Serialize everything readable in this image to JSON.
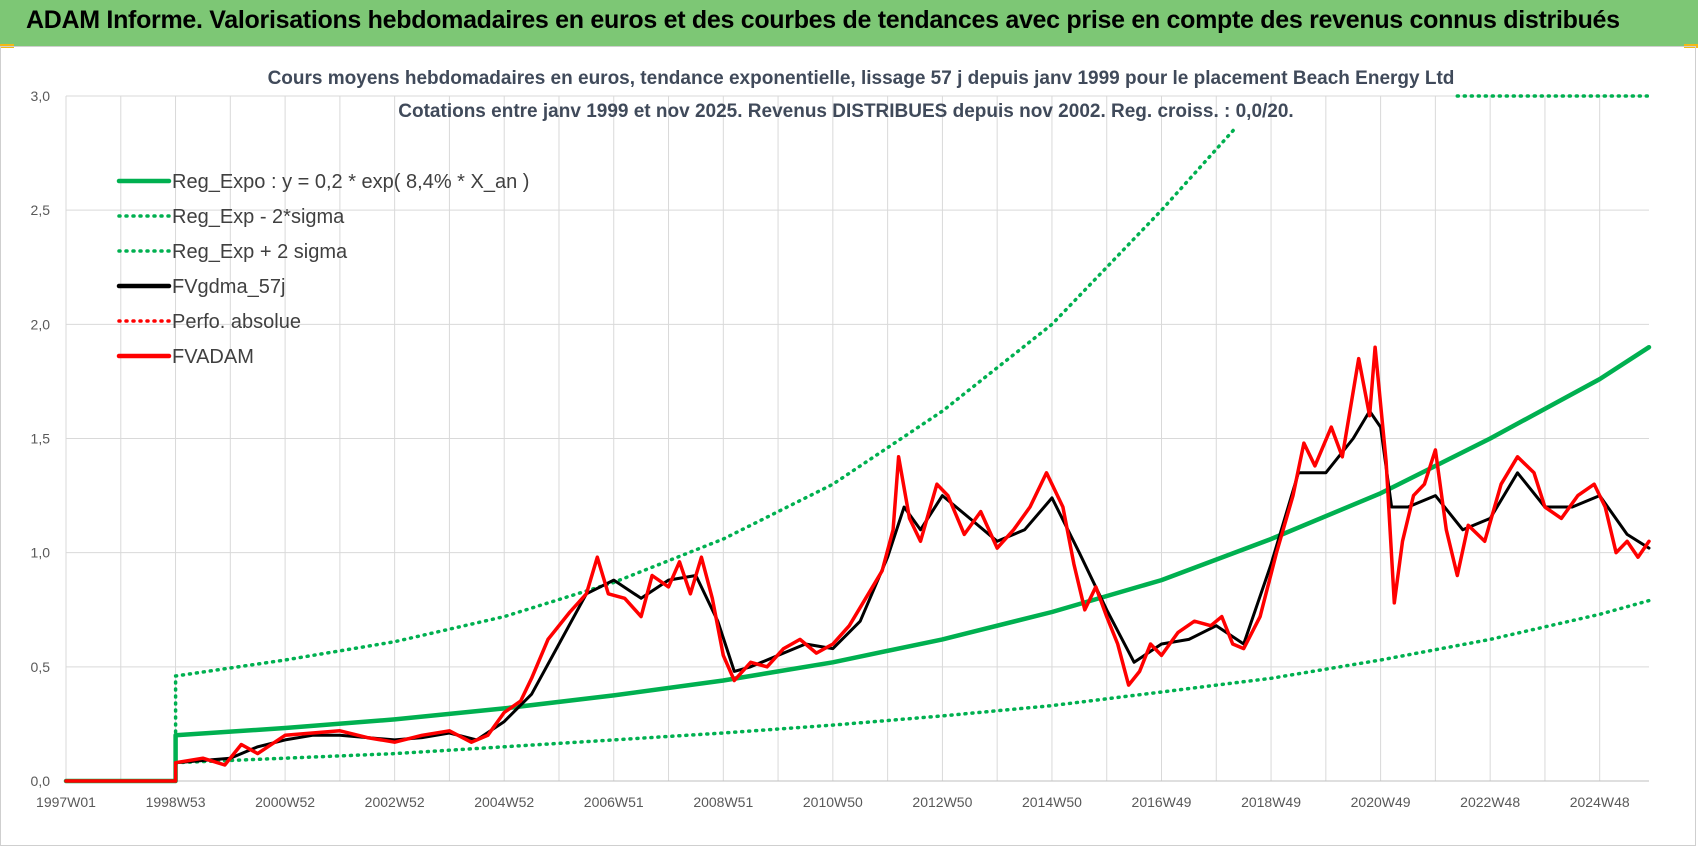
{
  "banner": {
    "title": "ADAM Informe. Valorisations hebdomadaires en euros et des courbes de tendances avec prise en compte des revenus connus distribués"
  },
  "colors": {
    "banner_bg": "#7dc775",
    "trend_green": "#00b050",
    "smooth_black": "#000000",
    "price_red": "#ff0000",
    "grid": "#d9d9d9",
    "title_text": "#404a5a"
  },
  "chart_data": {
    "type": "line",
    "title": "Cours moyens hebdomadaires en euros, tendance exponentielle, lissage 57 j depuis janv 1999  pour le placement Beach Energy Ltd",
    "subtitle": "Cotations entre janv 1999 et nov 2025. Revenus DISTRIBUES depuis nov 2002.  Reg. croiss. : 0,0/20.",
    "xlabel": "",
    "ylabel": "",
    "ylim": [
      0,
      3.0
    ],
    "xlim": [
      1997.0,
      2025.9
    ],
    "y_ticks": [
      "0,0",
      "0,5",
      "1,0",
      "1,5",
      "2,0",
      "2,5",
      "3,0"
    ],
    "x_tick_labels": [
      "1997W01",
      "1998W53",
      "2000W52",
      "2002W52",
      "2004W52",
      "2006W51",
      "2008W51",
      "2010W50",
      "2012W50",
      "2014W50",
      "2016W49",
      "2018W49",
      "2020W49",
      "2022W48",
      "2024W48"
    ],
    "x_tick_years": [
      1997.0,
      1999.0,
      2001.0,
      2003.0,
      2005.0,
      2007.0,
      2009.0,
      2011.0,
      2013.0,
      2015.0,
      2017.0,
      2019.0,
      2021.0,
      2023.0,
      2025.0
    ],
    "grid": true,
    "legend_position": "top-left",
    "legend": [
      {
        "label": "Reg_Expo : y = 0,2 * exp( 8,4% *  X_an )",
        "color": "#00b050",
        "style": "solid"
      },
      {
        "label": "Reg_Exp - 2*sigma",
        "color": "#00b050",
        "style": "dotted"
      },
      {
        "label": "Reg_Exp + 2 sigma",
        "color": "#00b050",
        "style": "dotted"
      },
      {
        "label": "FVgdma_57j",
        "color": "#000000",
        "style": "solid"
      },
      {
        "label": "Perfo. absolue",
        "color": "#ff0000",
        "style": "dotted"
      },
      {
        "label": "FVADAM",
        "color": "#ff0000",
        "style": "solid"
      }
    ],
    "series": [
      {
        "name": "Reg_Expo : y = 0,2 * exp( 8,4% *  X_an )",
        "points": [
          [
            1997.0,
            0
          ],
          [
            1999.0,
            0
          ],
          [
            1999.0,
            0.2
          ],
          [
            2001.0,
            0.232
          ],
          [
            2003.0,
            0.27
          ],
          [
            2005.0,
            0.318
          ],
          [
            2007.0,
            0.375
          ],
          [
            2009.0,
            0.44
          ],
          [
            2011.0,
            0.52
          ],
          [
            2013.0,
            0.62
          ],
          [
            2015.0,
            0.74
          ],
          [
            2017.0,
            0.88
          ],
          [
            2019.0,
            1.06
          ],
          [
            2021.0,
            1.26
          ],
          [
            2023.0,
            1.5
          ],
          [
            2025.0,
            1.76
          ],
          [
            2025.9,
            1.9
          ]
        ]
      },
      {
        "name": "Reg_Exp - 2*sigma",
        "points": [
          [
            1999.0,
            0.08
          ],
          [
            2001.0,
            0.1
          ],
          [
            2003.0,
            0.12
          ],
          [
            2005.0,
            0.15
          ],
          [
            2007.0,
            0.18
          ],
          [
            2009.0,
            0.21
          ],
          [
            2011.0,
            0.245
          ],
          [
            2013.0,
            0.285
          ],
          [
            2015.0,
            0.33
          ],
          [
            2017.0,
            0.39
          ],
          [
            2019.0,
            0.45
          ],
          [
            2021.0,
            0.53
          ],
          [
            2023.0,
            0.62
          ],
          [
            2025.0,
            0.73
          ],
          [
            2025.9,
            0.79
          ]
        ]
      },
      {
        "name": "Reg_Exp + 2 sigma",
        "points": [
          [
            1999.0,
            0
          ],
          [
            1999.0,
            0.46
          ],
          [
            2001.0,
            0.53
          ],
          [
            2003.0,
            0.61
          ],
          [
            2005.0,
            0.72
          ],
          [
            2007.0,
            0.87
          ],
          [
            2009.0,
            1.06
          ],
          [
            2011.0,
            1.3
          ],
          [
            2013.0,
            1.62
          ],
          [
            2015.0,
            2.0
          ],
          [
            2017.0,
            2.5
          ],
          [
            2018.35,
            2.86
          ]
        ]
      },
      {
        "name": "Reg_Exp + 2 sigma (capped)",
        "points": [
          [
            2022.4,
            3.0
          ],
          [
            2025.9,
            3.0
          ]
        ]
      },
      {
        "name": "FVgdma_57j",
        "points": [
          [
            1999.0,
            0.08
          ],
          [
            1999.5,
            0.09
          ],
          [
            2000.0,
            0.1
          ],
          [
            2000.5,
            0.15
          ],
          [
            2001.0,
            0.18
          ],
          [
            2001.5,
            0.2
          ],
          [
            2002.0,
            0.2
          ],
          [
            2002.5,
            0.19
          ],
          [
            2003.0,
            0.18
          ],
          [
            2003.5,
            0.19
          ],
          [
            2004.0,
            0.21
          ],
          [
            2004.5,
            0.18
          ],
          [
            2005.0,
            0.26
          ],
          [
            2005.5,
            0.38
          ],
          [
            2006.0,
            0.6
          ],
          [
            2006.5,
            0.82
          ],
          [
            2007.0,
            0.88
          ],
          [
            2007.5,
            0.8
          ],
          [
            2008.0,
            0.88
          ],
          [
            2008.5,
            0.9
          ],
          [
            2008.9,
            0.7
          ],
          [
            2009.2,
            0.48
          ],
          [
            2009.5,
            0.5
          ],
          [
            2010.0,
            0.55
          ],
          [
            2010.5,
            0.6
          ],
          [
            2011.0,
            0.58
          ],
          [
            2011.5,
            0.7
          ],
          [
            2012.0,
            0.98
          ],
          [
            2012.3,
            1.2
          ],
          [
            2012.6,
            1.1
          ],
          [
            2013.0,
            1.25
          ],
          [
            2013.5,
            1.15
          ],
          [
            2014.0,
            1.05
          ],
          [
            2014.5,
            1.1
          ],
          [
            2015.0,
            1.24
          ],
          [
            2015.5,
            1.0
          ],
          [
            2016.0,
            0.75
          ],
          [
            2016.5,
            0.52
          ],
          [
            2017.0,
            0.6
          ],
          [
            2017.5,
            0.62
          ],
          [
            2018.0,
            0.68
          ],
          [
            2018.5,
            0.6
          ],
          [
            2019.0,
            0.95
          ],
          [
            2019.5,
            1.35
          ],
          [
            2020.0,
            1.35
          ],
          [
            2020.5,
            1.5
          ],
          [
            2020.8,
            1.62
          ],
          [
            2021.0,
            1.55
          ],
          [
            2021.2,
            1.2
          ],
          [
            2021.5,
            1.2
          ],
          [
            2022.0,
            1.25
          ],
          [
            2022.5,
            1.1
          ],
          [
            2023.0,
            1.15
          ],
          [
            2023.5,
            1.35
          ],
          [
            2024.0,
            1.2
          ],
          [
            2024.5,
            1.2
          ],
          [
            2025.0,
            1.25
          ],
          [
            2025.5,
            1.08
          ],
          [
            2025.9,
            1.02
          ]
        ]
      },
      {
        "name": "FVADAM",
        "points": [
          [
            1997.0,
            0
          ],
          [
            1999.0,
            0
          ],
          [
            1999.0,
            0.08
          ],
          [
            1999.5,
            0.1
          ],
          [
            1999.9,
            0.07
          ],
          [
            2000.2,
            0.16
          ],
          [
            2000.5,
            0.12
          ],
          [
            2001.0,
            0.2
          ],
          [
            2001.5,
            0.21
          ],
          [
            2002.0,
            0.22
          ],
          [
            2002.5,
            0.19
          ],
          [
            2003.0,
            0.17
          ],
          [
            2003.5,
            0.2
          ],
          [
            2004.0,
            0.22
          ],
          [
            2004.4,
            0.17
          ],
          [
            2004.7,
            0.2
          ],
          [
            2005.0,
            0.3
          ],
          [
            2005.3,
            0.35
          ],
          [
            2005.5,
            0.45
          ],
          [
            2005.8,
            0.62
          ],
          [
            2006.2,
            0.74
          ],
          [
            2006.5,
            0.82
          ],
          [
            2006.7,
            0.98
          ],
          [
            2006.9,
            0.82
          ],
          [
            2007.2,
            0.8
          ],
          [
            2007.5,
            0.72
          ],
          [
            2007.7,
            0.9
          ],
          [
            2008.0,
            0.85
          ],
          [
            2008.2,
            0.96
          ],
          [
            2008.4,
            0.82
          ],
          [
            2008.6,
            0.98
          ],
          [
            2008.8,
            0.8
          ],
          [
            2009.0,
            0.55
          ],
          [
            2009.2,
            0.44
          ],
          [
            2009.5,
            0.52
          ],
          [
            2009.8,
            0.5
          ],
          [
            2010.1,
            0.58
          ],
          [
            2010.4,
            0.62
          ],
          [
            2010.7,
            0.56
          ],
          [
            2011.0,
            0.6
          ],
          [
            2011.3,
            0.68
          ],
          [
            2011.6,
            0.8
          ],
          [
            2011.9,
            0.92
          ],
          [
            2012.1,
            1.1
          ],
          [
            2012.2,
            1.42
          ],
          [
            2012.4,
            1.15
          ],
          [
            2012.6,
            1.05
          ],
          [
            2012.9,
            1.3
          ],
          [
            2013.1,
            1.25
          ],
          [
            2013.4,
            1.08
          ],
          [
            2013.7,
            1.18
          ],
          [
            2014.0,
            1.02
          ],
          [
            2014.3,
            1.1
          ],
          [
            2014.6,
            1.2
          ],
          [
            2014.9,
            1.35
          ],
          [
            2015.2,
            1.2
          ],
          [
            2015.4,
            0.95
          ],
          [
            2015.6,
            0.75
          ],
          [
            2015.8,
            0.85
          ],
          [
            2016.0,
            0.72
          ],
          [
            2016.2,
            0.6
          ],
          [
            2016.4,
            0.42
          ],
          [
            2016.6,
            0.48
          ],
          [
            2016.8,
            0.6
          ],
          [
            2017.0,
            0.55
          ],
          [
            2017.3,
            0.65
          ],
          [
            2017.6,
            0.7
          ],
          [
            2017.9,
            0.68
          ],
          [
            2018.1,
            0.72
          ],
          [
            2018.3,
            0.6
          ],
          [
            2018.5,
            0.58
          ],
          [
            2018.8,
            0.72
          ],
          [
            2019.1,
            1.0
          ],
          [
            2019.4,
            1.25
          ],
          [
            2019.6,
            1.48
          ],
          [
            2019.8,
            1.38
          ],
          [
            2020.1,
            1.55
          ],
          [
            2020.3,
            1.42
          ],
          [
            2020.6,
            1.85
          ],
          [
            2020.8,
            1.6
          ],
          [
            2020.9,
            1.9
          ],
          [
            2021.1,
            1.4
          ],
          [
            2021.25,
            0.78
          ],
          [
            2021.4,
            1.05
          ],
          [
            2021.6,
            1.25
          ],
          [
            2021.8,
            1.3
          ],
          [
            2022.0,
            1.45
          ],
          [
            2022.2,
            1.1
          ],
          [
            2022.4,
            0.9
          ],
          [
            2022.6,
            1.12
          ],
          [
            2022.9,
            1.05
          ],
          [
            2023.2,
            1.3
          ],
          [
            2023.5,
            1.42
          ],
          [
            2023.8,
            1.35
          ],
          [
            2024.0,
            1.2
          ],
          [
            2024.3,
            1.15
          ],
          [
            2024.6,
            1.25
          ],
          [
            2024.9,
            1.3
          ],
          [
            2025.1,
            1.2
          ],
          [
            2025.3,
            1.0
          ],
          [
            2025.5,
            1.05
          ],
          [
            2025.7,
            0.98
          ],
          [
            2025.9,
            1.05
          ]
        ]
      }
    ]
  }
}
